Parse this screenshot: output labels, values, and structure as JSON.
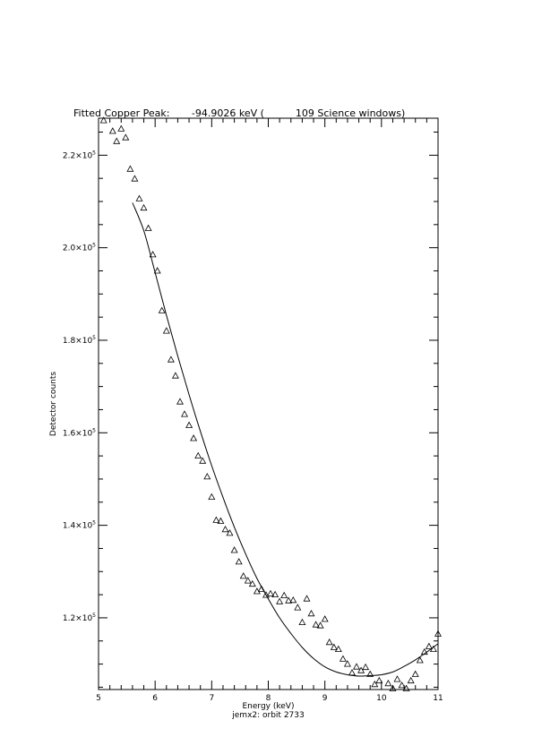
{
  "chart_data": {
    "type": "scatter",
    "title": "Fitted Copper Peak:       -94.9026 keV (          109 Science windows)",
    "xlabel": "Energy (keV)",
    "subtitle": "jemx2: orbit 2733",
    "ylabel": "Detector counts",
    "xlim": [
      5,
      11
    ],
    "ylim": [
      104500,
      228000
    ],
    "grid": false,
    "x_ticks": [
      {
        "value": 5,
        "label": "5"
      },
      {
        "value": 6,
        "label": "6"
      },
      {
        "value": 7,
        "label": "7"
      },
      {
        "value": 8,
        "label": "8"
      },
      {
        "value": 9,
        "label": "9"
      },
      {
        "value": 10,
        "label": "10"
      },
      {
        "value": 11,
        "label": "11"
      }
    ],
    "y_ticks": [
      {
        "value": 120000,
        "mant": "1.2×10",
        "exp": "5"
      },
      {
        "value": 140000,
        "mant": "1.4×10",
        "exp": "5"
      },
      {
        "value": 160000,
        "mant": "1.6×10",
        "exp": "5"
      },
      {
        "value": 180000,
        "mant": "1.8×10",
        "exp": "5"
      },
      {
        "value": 200000,
        "mant": "2.0×10",
        "exp": "5"
      },
      {
        "value": 220000,
        "mant": "2.2×10",
        "exp": "5"
      }
    ],
    "series": [
      {
        "marker": "triangle",
        "x": [
          5.09,
          5.15,
          5.25,
          5.32,
          5.4,
          5.48,
          5.56,
          5.64,
          5.72,
          5.8,
          5.88,
          5.96,
          6.04,
          6.12,
          6.2,
          6.28,
          6.36,
          6.44,
          6.52,
          6.6,
          6.68,
          6.76,
          6.84,
          6.92,
          7.0,
          7.08,
          7.16,
          7.24,
          7.32,
          7.4,
          7.48,
          7.56,
          7.64,
          7.72,
          7.8,
          7.88,
          7.96,
          8.04,
          8.12,
          8.2,
          8.28,
          8.36,
          8.44,
          8.52,
          8.6,
          8.68,
          8.76,
          8.84,
          8.92,
          9.0,
          9.08,
          9.16,
          9.24,
          9.32,
          9.4,
          9.48,
          9.56,
          9.64,
          9.72,
          9.8,
          9.88,
          9.96,
          10.04,
          10.12,
          10.2,
          10.28,
          10.36,
          10.44,
          10.52,
          10.6,
          10.68,
          10.76,
          10.84,
          10.92,
          11.0
        ],
        "y": [
          227500,
          228200,
          225200,
          223000,
          225700,
          223800,
          217000,
          214900,
          210600,
          208600,
          204200,
          198500,
          195000,
          186400,
          182000,
          175800,
          172300,
          166700,
          164000,
          161600,
          158800,
          155000,
          153900,
          150500,
          146100,
          141100,
          140900,
          139100,
          138300,
          134600,
          132100,
          129000,
          128000,
          127300,
          125700,
          126200,
          124900,
          125200,
          125000,
          123500,
          124800,
          123700,
          123800,
          122200,
          119000,
          124100,
          120900,
          118500,
          118300,
          119700,
          114700,
          113600,
          113200,
          111100,
          110000,
          108100,
          109400,
          108600,
          109300,
          107800,
          105600,
          106400,
          104300,
          105800,
          104700,
          106700,
          105400,
          104700,
          106400,
          107800,
          110800,
          112600,
          113800,
          113200,
          116500
        ]
      },
      {
        "type": "line",
        "x": [
          5.6,
          5.8,
          6.0,
          6.2,
          6.4,
          6.6,
          6.8,
          7.0,
          7.2,
          7.4,
          7.6,
          7.8,
          8.0,
          8.2,
          8.4,
          8.6,
          8.8,
          9.0,
          9.2,
          9.4,
          9.6,
          9.8,
          10.0,
          10.2,
          10.4,
          10.6,
          10.8,
          11.0
        ],
        "y": [
          209700,
          203700,
          194600,
          185400,
          176600,
          168200,
          160300,
          152900,
          146000,
          139600,
          133800,
          128500,
          124100,
          120000,
          116600,
          113600,
          111200,
          109400,
          108300,
          107700,
          107400,
          107500,
          107700,
          108300,
          109500,
          110900,
          112600,
          114400
        ]
      }
    ]
  }
}
